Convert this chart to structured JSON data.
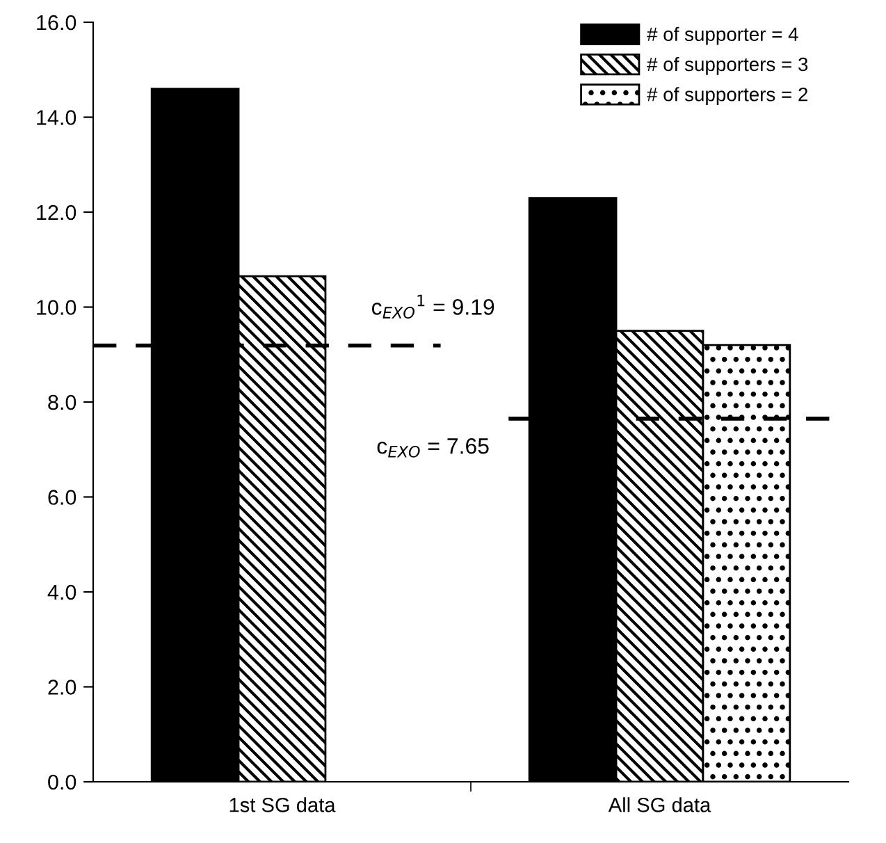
{
  "chart_data": {
    "type": "bar",
    "categories": [
      "1st SG data",
      "All SG data"
    ],
    "series": [
      {
        "name": "# of supporter = 4",
        "color": "#000000",
        "values": [
          14.6,
          12.3
        ]
      },
      {
        "name": "# of supporters = 3",
        "color": "#000000",
        "values": [
          10.65,
          9.5
        ]
      },
      {
        "name": "# of supporters = 2",
        "color": "#000000",
        "values": [
          null,
          9.2
        ]
      }
    ],
    "ylim": [
      0,
      16
    ],
    "yticks": [
      {
        "value": 0,
        "label": "0.0"
      },
      {
        "value": 2,
        "label": "2.0"
      },
      {
        "value": 4,
        "label": "4.0"
      },
      {
        "value": 6,
        "label": "6.0"
      },
      {
        "value": 8,
        "label": "8.0"
      },
      {
        "value": 10,
        "label": "10.0"
      },
      {
        "value": 12,
        "label": "12.0"
      },
      {
        "value": 14,
        "label": "14.0"
      },
      {
        "value": 16,
        "label": "16.0"
      }
    ],
    "ref_lines": [
      {
        "axis": "y",
        "value": 9.19,
        "label": "c$_{EXO}$$^{1}$ = 9.19",
        "color": "#000000",
        "line_style": "dashed"
      },
      {
        "axis": "y",
        "value": 7.65,
        "label": "c$_{EXO}$ = 7.65",
        "color": "#000000",
        "line_style": "dashed"
      }
    ],
    "legend": "top right",
    "grid": false
  }
}
